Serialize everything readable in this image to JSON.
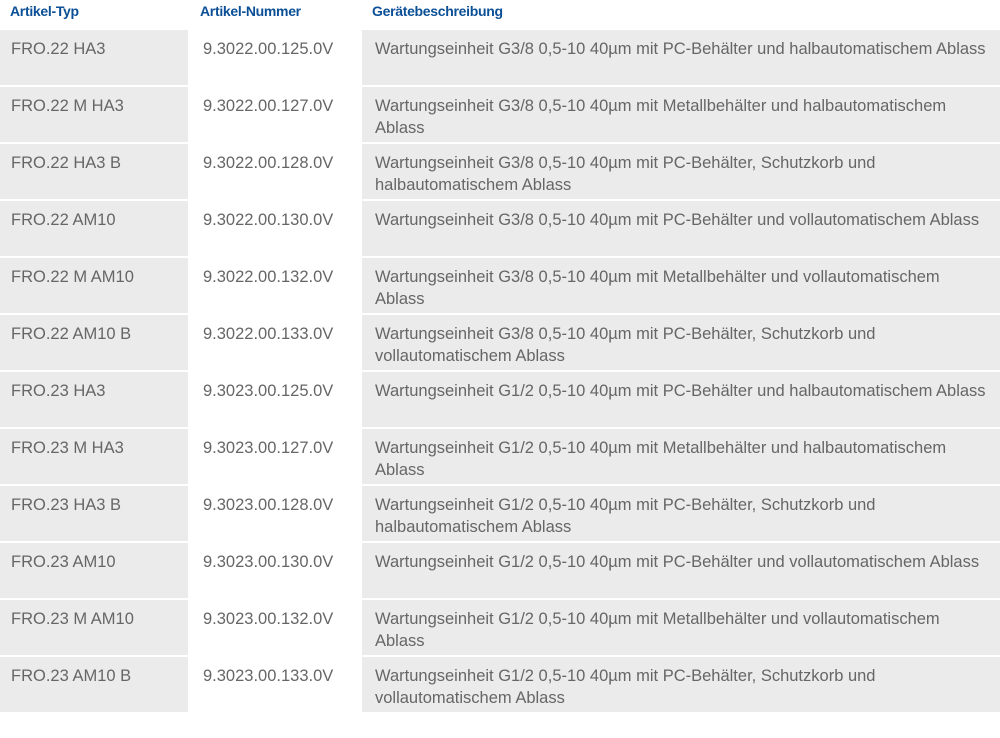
{
  "headers": {
    "type": "Artikel-Typ",
    "number": "Artikel-Nummer",
    "description": "Gerätebeschreibung"
  },
  "colors": {
    "header_text": "#0b4f96",
    "body_text": "#666666",
    "cell_gray": "#ebebeb"
  },
  "rows": [
    {
      "type": "FRO.22 HA3",
      "number": "9.3022.00.125.0V",
      "description": "Wartungseinheit G3/8 0,5-10 40µm mit PC-Behälter und halbautomatischem Ablass"
    },
    {
      "type": "FRO.22 M HA3",
      "number": "9.3022.00.127.0V",
      "description": "Wartungseinheit G3/8 0,5-10 40µm mit Metallbehälter und halbautomatischem Ablass"
    },
    {
      "type": "FRO.22 HA3 B",
      "number": "9.3022.00.128.0V",
      "description": "Wartungseinheit G3/8 0,5-10 40µm mit PC-Behälter, Schutzkorb und halbautomatischem Ablass"
    },
    {
      "type": "FRO.22 AM10",
      "number": "9.3022.00.130.0V",
      "description": "Wartungseinheit G3/8 0,5-10 40µm mit PC-Behälter und vollautomatischem Ablass"
    },
    {
      "type": "FRO.22 M AM10",
      "number": "9.3022.00.132.0V",
      "description": "Wartungseinheit G3/8 0,5-10 40µm mit Metallbehälter und vollautomatischem Ablass"
    },
    {
      "type": "FRO.22 AM10 B",
      "number": "9.3022.00.133.0V",
      "description": "Wartungseinheit G3/8 0,5-10 40µm mit PC-Behälter, Schutzkorb und vollautomatischem Ablass"
    },
    {
      "type": "FRO.23 HA3",
      "number": "9.3023.00.125.0V",
      "description": "Wartungseinheit G1/2 0,5-10 40µm mit PC-Behälter und halbautomatischem Ablass"
    },
    {
      "type": "FRO.23 M HA3",
      "number": "9.3023.00.127.0V",
      "description": "Wartungseinheit G1/2 0,5-10 40µm mit Metallbehälter und halbautomatischem Ablass"
    },
    {
      "type": "FRO.23 HA3 B",
      "number": "9.3023.00.128.0V",
      "description": "Wartungseinheit G1/2 0,5-10 40µm mit PC-Behälter, Schutzkorb und halbautomatischem Ablass"
    },
    {
      "type": "FRO.23 AM10",
      "number": "9.3023.00.130.0V",
      "description": "Wartungseinheit G1/2 0,5-10 40µm mit PC-Behälter und vollautomatischem Ablass"
    },
    {
      "type": "FRO.23 M AM10",
      "number": "9.3023.00.132.0V",
      "description": "Wartungseinheit G1/2 0,5-10 40µm mit Metallbehälter und vollautomatischem Ablass"
    },
    {
      "type": "FRO.23 AM10 B",
      "number": "9.3023.00.133.0V",
      "description": "Wartungseinheit G1/2 0,5-10 40µm mit PC-Behälter, Schutzkorb und vollautomatischem Ablass"
    }
  ]
}
